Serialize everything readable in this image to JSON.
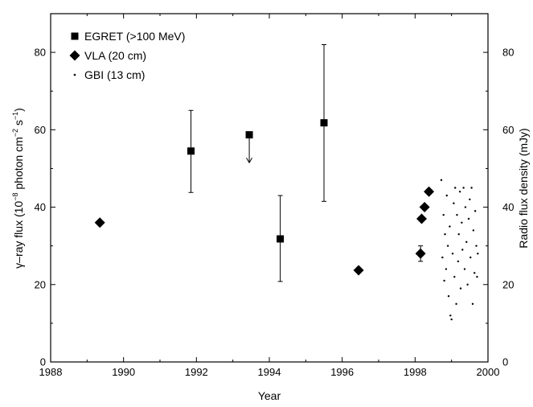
{
  "chart_data": {
    "type": "scatter",
    "title": "",
    "xlabel": "Year",
    "ylabel": {
      "prefix": "γ–ray flux (10",
      "exp1": "−8",
      "mid": " photon cm",
      "exp2": "−2",
      "sp": " s",
      "exp3": "−1",
      "suffix": ")"
    },
    "ylabel_right": "Radio flux density (mJy)",
    "xlim": [
      1988,
      2000
    ],
    "ylim": [
      0,
      90
    ],
    "ylim_right": [
      0,
      90
    ],
    "xticks": [
      "1988",
      "1990",
      "1992",
      "1994",
      "1996",
      "1998",
      "2000"
    ],
    "yticks": [
      "0",
      "20",
      "40",
      "60",
      "80"
    ],
    "yticks_right": [
      "0",
      "20",
      "40",
      "60",
      "80"
    ],
    "grid": false,
    "legend_position": "top-left",
    "series": [
      {
        "name": "EGRET (>100 MeV)",
        "marker": "square",
        "axis": "left",
        "points": [
          {
            "x": 1991.85,
            "y": 54.5,
            "err_low": 43.8,
            "err_high": 65.0
          },
          {
            "x": 1993.45,
            "y": 58.7,
            "upper_limit": true,
            "arrow_to": 51.5
          },
          {
            "x": 1994.3,
            "y": 31.8,
            "err_low": 20.8,
            "err_high": 43.0
          },
          {
            "x": 1995.5,
            "y": 61.8,
            "err_low": 41.5,
            "err_high": 82.0
          }
        ]
      },
      {
        "name": "VLA (20 cm)",
        "marker": "diamond",
        "axis": "right",
        "points": [
          {
            "x": 1989.35,
            "y": 36.0
          },
          {
            "x": 1996.45,
            "y": 23.7
          },
          {
            "x": 1998.15,
            "y": 28.0,
            "err_low": 26.0,
            "err_high": 30.0
          },
          {
            "x": 1998.18,
            "y": 37.0
          },
          {
            "x": 1998.26,
            "y": 40.0
          },
          {
            "x": 1998.38,
            "y": 44.0
          }
        ]
      },
      {
        "name": "GBI (13 cm)",
        "marker": "dot",
        "axis": "right",
        "points": [
          {
            "x": 1998.72,
            "y": 47.0
          },
          {
            "x": 1998.75,
            "y": 27.0
          },
          {
            "x": 1998.78,
            "y": 38.0
          },
          {
            "x": 1998.8,
            "y": 21.0
          },
          {
            "x": 1998.82,
            "y": 33.0
          },
          {
            "x": 1998.85,
            "y": 24.0
          },
          {
            "x": 1998.87,
            "y": 43.0
          },
          {
            "x": 1998.9,
            "y": 30.0
          },
          {
            "x": 1998.92,
            "y": 17.0
          },
          {
            "x": 1998.95,
            "y": 35.0
          },
          {
            "x": 1998.97,
            "y": 12.0
          },
          {
            "x": 1999.0,
            "y": 11.0
          },
          {
            "x": 1999.03,
            "y": 28.0
          },
          {
            "x": 1999.06,
            "y": 41.0
          },
          {
            "x": 1999.08,
            "y": 22.0
          },
          {
            "x": 1999.1,
            "y": 45.0
          },
          {
            "x": 1999.13,
            "y": 15.0
          },
          {
            "x": 1999.15,
            "y": 38.0
          },
          {
            "x": 1999.18,
            "y": 26.0
          },
          {
            "x": 1999.2,
            "y": 33.0
          },
          {
            "x": 1999.23,
            "y": 44.0
          },
          {
            "x": 1999.25,
            "y": 19.0
          },
          {
            "x": 1999.28,
            "y": 36.0
          },
          {
            "x": 1999.3,
            "y": 29.0
          },
          {
            "x": 1999.33,
            "y": 45.0
          },
          {
            "x": 1999.36,
            "y": 24.0
          },
          {
            "x": 1999.38,
            "y": 40.0
          },
          {
            "x": 1999.41,
            "y": 31.0
          },
          {
            "x": 1999.44,
            "y": 20.0
          },
          {
            "x": 1999.47,
            "y": 37.0
          },
          {
            "x": 1999.5,
            "y": 42.0
          },
          {
            "x": 1999.52,
            "y": 27.0
          },
          {
            "x": 1999.55,
            "y": 45.0
          },
          {
            "x": 1999.58,
            "y": 15.0
          },
          {
            "x": 1999.6,
            "y": 34.0
          },
          {
            "x": 1999.63,
            "y": 23.0
          },
          {
            "x": 1999.65,
            "y": 39.0
          },
          {
            "x": 1999.68,
            "y": 30.0
          },
          {
            "x": 1999.7,
            "y": 22.0
          },
          {
            "x": 1999.72,
            "y": 28.0
          }
        ]
      }
    ]
  }
}
